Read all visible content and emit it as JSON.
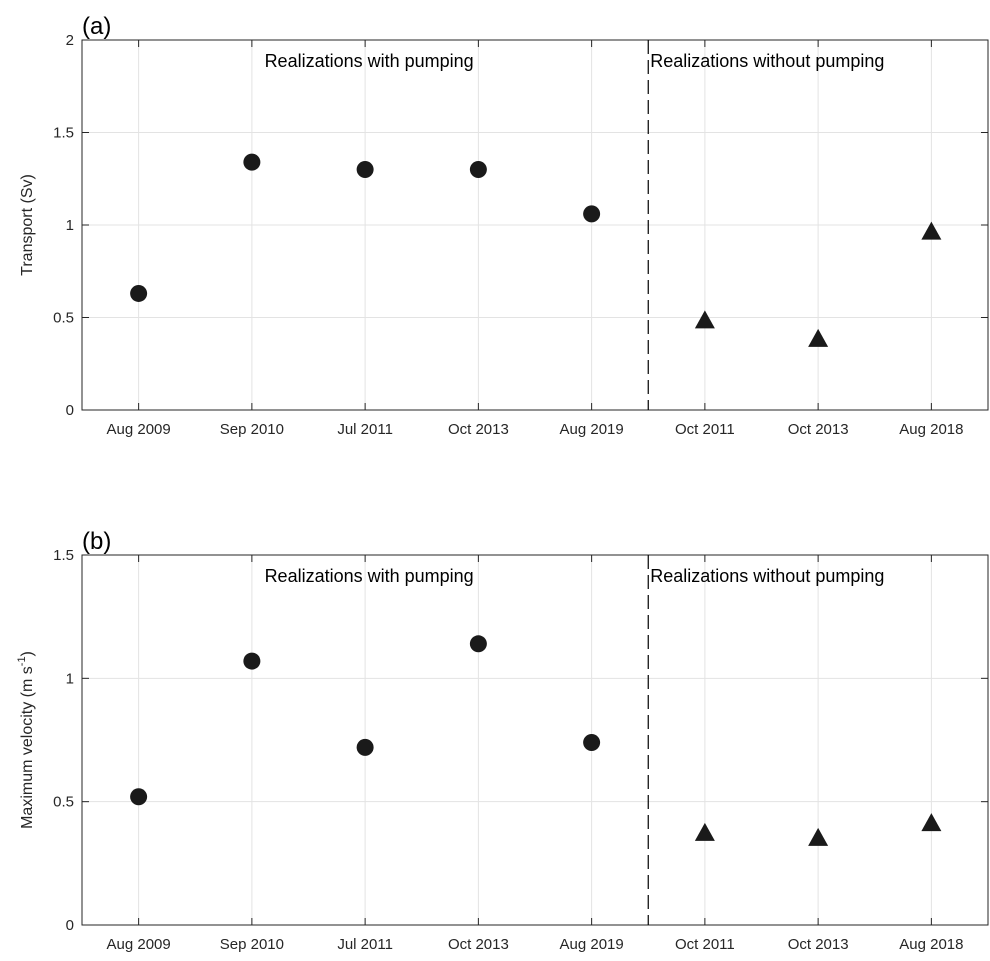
{
  "colors": {
    "marker": "#1a1a1a",
    "grid": "#e3e3e3",
    "axis": "#262626"
  },
  "chart_data": [
    {
      "type": "scatter",
      "panel_label": "(a)",
      "ylabel": "Transport (Sv)",
      "ylabel_unit_sup": "",
      "ylabel_tail": "",
      "xlabel": "",
      "categories": [
        "Aug 2009",
        "Sep 2010",
        "Jul 2011",
        "Oct 2013",
        "Aug 2019",
        "Oct 2011",
        "Oct 2013",
        "Aug 2018"
      ],
      "ylim": [
        0,
        2
      ],
      "yticks": [
        0,
        0.5,
        1,
        1.5,
        2
      ],
      "ytick_labels": [
        "0",
        "0.5",
        "1",
        "1.5",
        "2"
      ],
      "grid": true,
      "divider_after_index": 4,
      "region_labels": [
        "Realizations with pumping",
        "Realizations without pumping"
      ],
      "series": [
        {
          "marker": "circle",
          "indices": [
            0,
            1,
            2,
            3,
            4
          ],
          "values": [
            0.63,
            1.34,
            1.3,
            1.3,
            1.06
          ]
        },
        {
          "marker": "triangle",
          "indices": [
            5,
            6,
            7
          ],
          "values": [
            0.48,
            0.38,
            0.96
          ]
        }
      ]
    },
    {
      "type": "scatter",
      "panel_label": "(b)",
      "ylabel": "Maximum velocity (m s",
      "ylabel_unit_sup": "-1",
      "ylabel_tail": ")",
      "xlabel": "",
      "categories": [
        "Aug 2009",
        "Sep 2010",
        "Jul 2011",
        "Oct 2013",
        "Aug 2019",
        "Oct 2011",
        "Oct 2013",
        "Aug 2018"
      ],
      "ylim": [
        0,
        1.5
      ],
      "yticks": [
        0,
        0.5,
        1,
        1.5
      ],
      "ytick_labels": [
        "0",
        "0.5",
        "1",
        "1.5"
      ],
      "grid": true,
      "divider_after_index": 4,
      "region_labels": [
        "Realizations with pumping",
        "Realizations without pumping"
      ],
      "series": [
        {
          "marker": "circle",
          "indices": [
            0,
            1,
            2,
            3,
            4
          ],
          "values": [
            0.52,
            1.07,
            0.72,
            1.14,
            0.74
          ]
        },
        {
          "marker": "triangle",
          "indices": [
            5,
            6,
            7
          ],
          "values": [
            0.37,
            0.35,
            0.41
          ]
        }
      ]
    }
  ]
}
